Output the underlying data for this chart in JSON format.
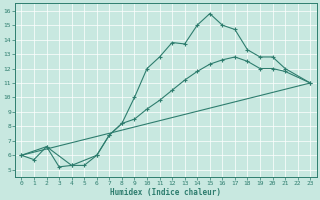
{
  "title": "",
  "xlabel": "Humidex (Indice chaleur)",
  "xlim": [
    -0.5,
    23.5
  ],
  "ylim": [
    4.5,
    16.5
  ],
  "xticks": [
    0,
    1,
    2,
    3,
    4,
    5,
    6,
    7,
    8,
    9,
    10,
    11,
    12,
    13,
    14,
    15,
    16,
    17,
    18,
    19,
    20,
    21,
    22,
    23
  ],
  "yticks": [
    5,
    6,
    7,
    8,
    9,
    10,
    11,
    12,
    13,
    14,
    15,
    16
  ],
  "line_color": "#2E7D6E",
  "bg_color": "#C8E8E0",
  "grid_color": "#ffffff",
  "line1_x": [
    0,
    1,
    2,
    3,
    4,
    5,
    6,
    7,
    8,
    9,
    10,
    11,
    12,
    13,
    14,
    15,
    16,
    17,
    18,
    19,
    20,
    21,
    23
  ],
  "line1_y": [
    6.0,
    5.7,
    6.6,
    5.2,
    5.3,
    5.3,
    6.0,
    7.4,
    8.2,
    10.0,
    12.0,
    12.8,
    13.8,
    13.7,
    15.0,
    15.8,
    15.0,
    14.7,
    13.3,
    12.8,
    12.8,
    12.0,
    11.0
  ],
  "line2_x": [
    0,
    2,
    4,
    6,
    7,
    8,
    9,
    10,
    11,
    12,
    13,
    14,
    15,
    16,
    17,
    18,
    19,
    20,
    21,
    23
  ],
  "line2_y": [
    6.0,
    6.6,
    5.3,
    6.0,
    7.4,
    8.2,
    8.5,
    9.2,
    9.8,
    10.5,
    11.2,
    11.8,
    12.3,
    12.6,
    12.8,
    12.5,
    12.0,
    12.0,
    11.8,
    11.0
  ],
  "line3_x": [
    0,
    23
  ],
  "line3_y": [
    6.0,
    11.0
  ]
}
